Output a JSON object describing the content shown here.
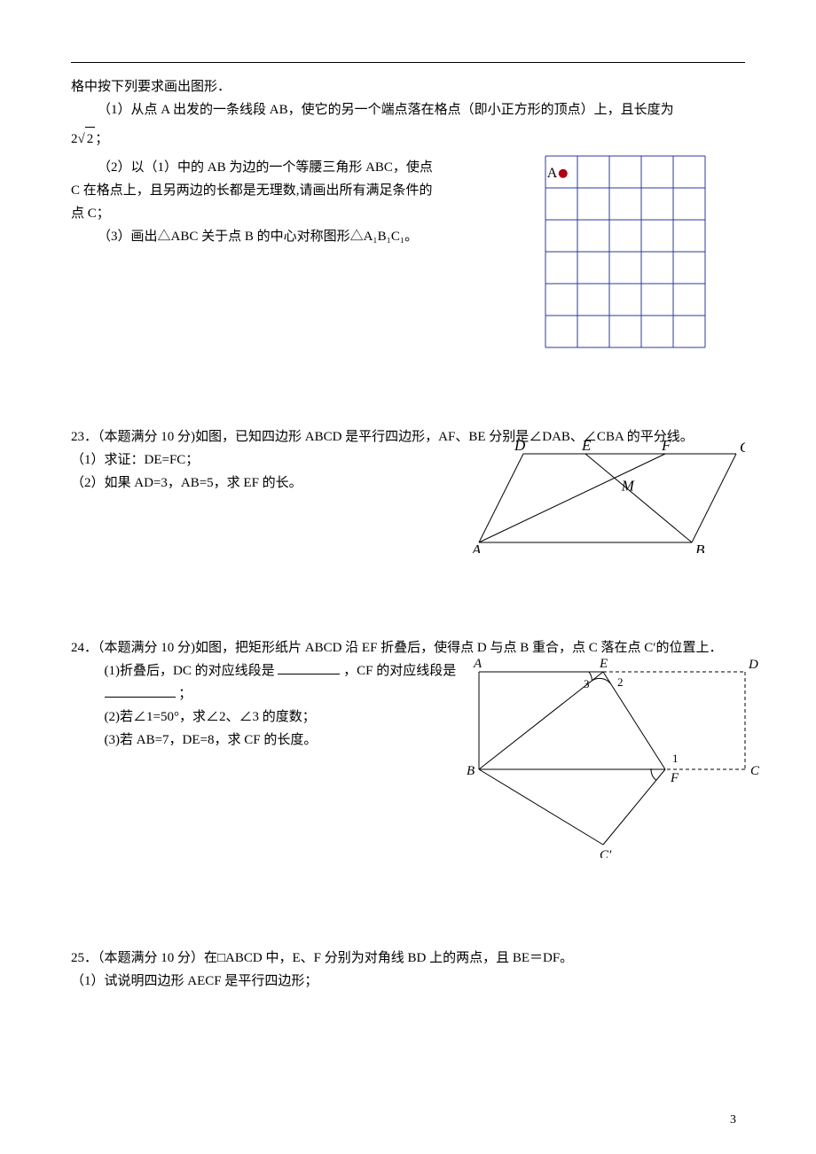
{
  "intro_line": "格中按下列要求画出图形．",
  "q22": {
    "p1_a": "（1）从点 A 出发的一条线段 AB，使它的另一个端点落在格点（即小正方形的顶点）上，且长度为",
    "p1_formula": "2√2",
    "p1_tail": "；",
    "p2": "（2）以（1）中的 AB 为边的一个等腰三角形 ABC，使点 C 在格点上，且另两边的长都是无理数,请画出所有满足条件的点 C；",
    "p3": "（3）画出△ABC 关于点 B 的中心对称图形△A₁B₁C₁。",
    "grid": {
      "rows": 6,
      "cols": 5,
      "cell": 36,
      "line_color": "#2b3aa0",
      "point_label": "A",
      "point_color": "#b00010",
      "label_color": "#000000",
      "point_row": 0,
      "point_col": 0
    }
  },
  "q23": {
    "head": "23．（本题满分 10 分)如图，已知四边形 ABCD 是平行四边形，AF、BE 分别是∠DAB、∠CBA 的平分线。",
    "p1": "（1）求证：DE=FC；",
    "p2": "（2）如果 AD=3，AB=5，求 EF 的长。",
    "fig": {
      "labels": {
        "D": "D",
        "E": "E",
        "F": "F",
        "C": "C",
        "A": "A",
        "B": "B",
        "M": "M"
      },
      "label_font": "italic 17px 'Times New Roman', serif",
      "stroke": "#000000",
      "stroke_width": 1
    }
  },
  "q24": {
    "head": "24．（本题满分 10 分)如图，把矩形纸片 ABCD 沿 EF 折叠后，使得点 D 与点 B 重合，点 C 落在点 C′的位置上．",
    "p1_a": "(1)折叠后，DC 的对应线段是",
    "p1_b": "，CF 的对应线段是",
    "p1_c": "；",
    "p2": "(2)若∠1=50°，求∠2、∠3 的度数；",
    "p3": "(3)若 AB=7，DE=8，求 CF 的长度。",
    "fig": {
      "labels": {
        "A": "A",
        "B": "B",
        "C": "C",
        "D": "D",
        "E": "E",
        "F": "F",
        "Cp": "C′",
        "a1": "1",
        "a2": "2",
        "a3": "3"
      },
      "label_font": "italic 15px 'Times New Roman', serif",
      "stroke": "#000000",
      "dash": "4,3"
    }
  },
  "q25": {
    "head": "25．（本题满分 10 分）在□ABCD 中，E、F 分别为对角线 BD 上的两点，且 BE＝DF。",
    "p1": "（1）试说明四边形 AECF 是平行四边形；"
  },
  "page_number": "3"
}
